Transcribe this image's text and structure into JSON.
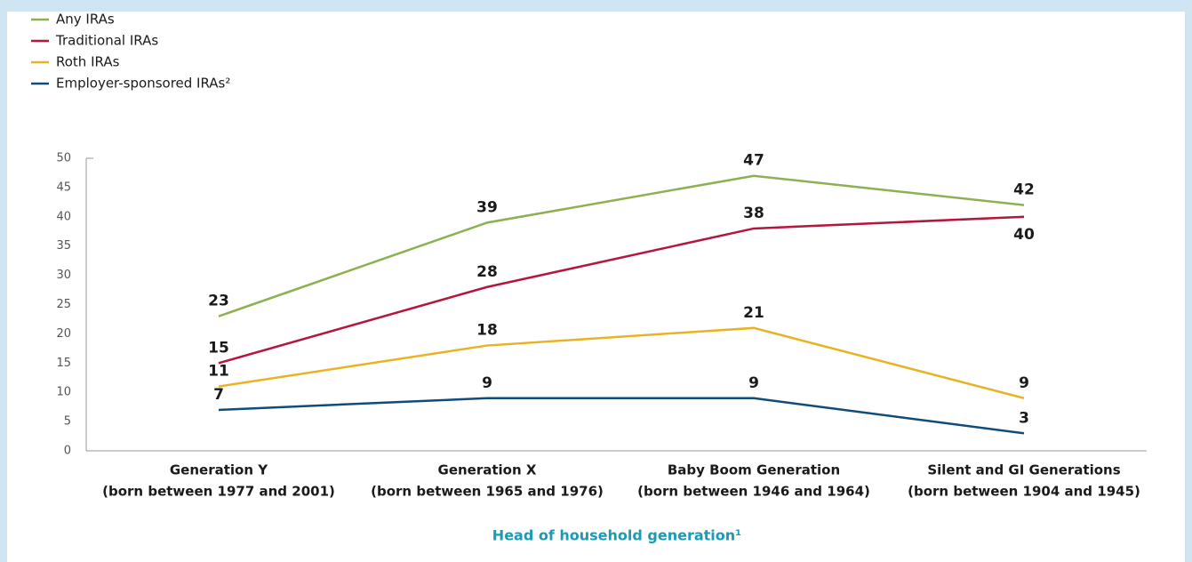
{
  "chart_data": {
    "type": "line",
    "categories": [
      [
        "Generation Y",
        "(born between 1977 and 2001)"
      ],
      [
        "Generation X",
        "(born between 1965 and 1976)"
      ],
      [
        "Baby Boom Generation",
        "(born between 1946 and 1964)"
      ],
      [
        "Silent and GI Generations",
        "(born between 1904 and 1945)"
      ]
    ],
    "series": [
      {
        "name": "Any IRAs",
        "color": "#8db050",
        "values": [
          23,
          39,
          47,
          42
        ]
      },
      {
        "name": "Traditional IRAs",
        "color": "#b5173c",
        "values": [
          15,
          28,
          38,
          40
        ]
      },
      {
        "name": "Roth IRAs",
        "color": "#e8b323",
        "values": [
          11,
          18,
          21,
          9
        ]
      },
      {
        "name": "Employer-sponsored IRAs²",
        "color": "#0f4c7a",
        "values": [
          7,
          9,
          9,
          3
        ]
      }
    ],
    "xlabel": "Head of household generation¹",
    "ylim": [
      0,
      50
    ],
    "yticks": [
      0,
      5,
      10,
      15,
      20,
      25,
      30,
      35,
      40,
      45,
      50
    ],
    "legend": "top-left"
  }
}
